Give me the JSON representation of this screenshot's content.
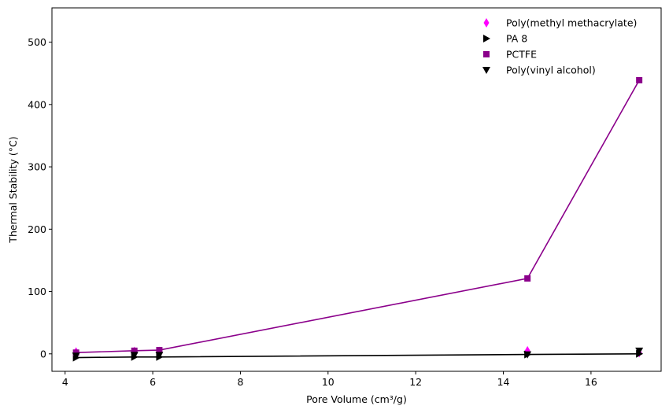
{
  "chart_data": {
    "type": "scatter",
    "xlabel": "Pore Volume (cm³/g)",
    "ylabel": "Thermal Stability (°C)",
    "xlim": [
      3.7,
      17.6
    ],
    "ylim": [
      -28,
      555
    ],
    "xticks": [
      4,
      6,
      8,
      10,
      12,
      14,
      16
    ],
    "yticks": [
      0,
      100,
      200,
      300,
      400,
      500
    ],
    "grid": false,
    "legend_position": "top-right",
    "series": [
      {
        "name": "Poly(methyl methacrylate)",
        "marker": "thin_diamond",
        "color": "#ff00ff",
        "line": false,
        "x": [
          4.25,
          5.58,
          6.15,
          14.55,
          17.1
        ],
        "y": [
          3,
          4,
          4,
          5,
          2
        ]
      },
      {
        "name": "PA 8",
        "marker": "triangle-right",
        "color": "#000000",
        "line": true,
        "x": [
          4.25,
          5.58,
          6.15,
          14.55,
          17.1
        ],
        "y": [
          -6,
          -5,
          -5,
          -1,
          0
        ]
      },
      {
        "name": "PCTFE",
        "marker": "square",
        "color": "#8b008b",
        "line": true,
        "x": [
          4.25,
          5.58,
          6.15,
          14.55,
          17.1
        ],
        "y": [
          2,
          5,
          6,
          121,
          439
        ]
      },
      {
        "name": "Poly(vinyl alcohol)",
        "marker": "triangle-down",
        "color": "#000000",
        "line": false,
        "x": [
          4.25,
          5.58,
          6.15,
          14.55,
          17.1
        ],
        "y": [
          -3,
          -2,
          -2,
          -1,
          5
        ]
      }
    ]
  }
}
